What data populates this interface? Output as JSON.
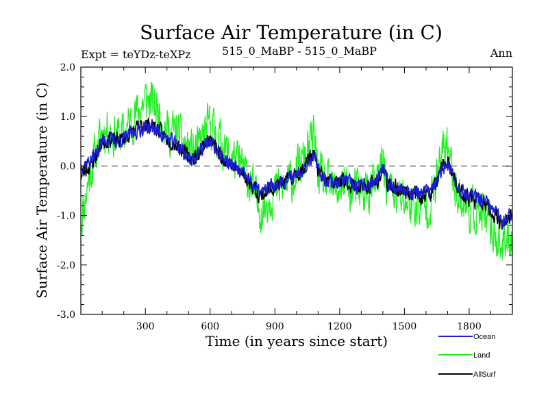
{
  "chart_data": {
    "type": "line",
    "title": "Surface Air Temperature (in C)",
    "subtitle_left": "Expt = teYDz-teXPz",
    "subtitle_center": "515_0_MaBP - 515_0_MaBP",
    "subtitle_right": "Ann",
    "xlabel": "Time (in years since start)",
    "ylabel": "Surface Air Temperature (in C)",
    "xlim": [
      1,
      2000
    ],
    "ylim": [
      -3.0,
      2.0
    ],
    "xticks": [
      300,
      600,
      900,
      1200,
      1500,
      1800
    ],
    "xtick_labels": [
      "300",
      "600",
      "900",
      "1200",
      "1500",
      "1800"
    ],
    "yticks": [
      -3.0,
      -2.0,
      -1.0,
      0.0,
      1.0,
      2.0
    ],
    "ytick_labels": [
      "-3.0",
      "-2.0",
      "-1.0",
      "0.0",
      "1.0",
      "2.0"
    ],
    "reference_line": {
      "y": 0.0,
      "style": "dashed",
      "color": "#808080"
    },
    "legend_placement": "below-right",
    "colors": {
      "Ocean": "#1c1cd8",
      "Land": "#22ee22",
      "AllSurf": "#000000"
    },
    "series_x": [
      1,
      20,
      40,
      60,
      80,
      100,
      130,
      160,
      200,
      240,
      280,
      300,
      320,
      340,
      360,
      400,
      440,
      470,
      500,
      540,
      580,
      600,
      620,
      640,
      680,
      720,
      760,
      800,
      820,
      840,
      880,
      920,
      960,
      1000,
      1040,
      1060,
      1080,
      1100,
      1140,
      1180,
      1220,
      1260,
      1300,
      1340,
      1380,
      1400,
      1420,
      1460,
      1500,
      1540,
      1580,
      1620,
      1660,
      1680,
      1700,
      1720,
      1760,
      1800,
      1840,
      1880,
      1920,
      1960,
      1990
    ],
    "series": [
      {
        "name": "Land",
        "variability": 0.45,
        "values": [
          -1.1,
          -0.7,
          -0.2,
          0.1,
          0.4,
          0.7,
          0.75,
          0.6,
          0.65,
          0.95,
          1.2,
          1.35,
          1.3,
          1.25,
          1.1,
          0.7,
          0.7,
          0.5,
          0.3,
          0.3,
          0.7,
          0.85,
          0.7,
          0.55,
          0.25,
          0.1,
          -0.1,
          -0.45,
          -0.8,
          -0.9,
          -0.6,
          -0.45,
          -0.35,
          -0.15,
          0.15,
          0.4,
          0.6,
          -0.1,
          -0.4,
          -0.5,
          -0.35,
          -0.5,
          -0.5,
          -0.5,
          -0.3,
          0.2,
          -0.4,
          -0.6,
          -0.7,
          -0.8,
          -0.85,
          -0.75,
          -0.1,
          0.35,
          0.45,
          -0.1,
          -0.7,
          -0.85,
          -0.95,
          -1.1,
          -1.4,
          -1.65,
          -1.4
        ]
      },
      {
        "name": "AllSurf",
        "variability": 0.16,
        "values": [
          -0.2,
          -0.1,
          0.0,
          0.1,
          0.3,
          0.5,
          0.55,
          0.5,
          0.55,
          0.7,
          0.8,
          0.85,
          0.82,
          0.8,
          0.75,
          0.55,
          0.45,
          0.35,
          0.15,
          0.2,
          0.5,
          0.55,
          0.4,
          0.25,
          0.1,
          -0.05,
          -0.2,
          -0.4,
          -0.55,
          -0.6,
          -0.45,
          -0.35,
          -0.3,
          -0.15,
          0.0,
          0.2,
          0.25,
          -0.1,
          -0.3,
          -0.35,
          -0.3,
          -0.4,
          -0.45,
          -0.4,
          -0.3,
          -0.05,
          -0.35,
          -0.45,
          -0.5,
          -0.55,
          -0.6,
          -0.55,
          -0.25,
          0.05,
          0.1,
          -0.2,
          -0.55,
          -0.65,
          -0.7,
          -0.8,
          -1.0,
          -1.15,
          -1.05
        ]
      },
      {
        "name": "Ocean",
        "variability": 0.15,
        "values": [
          0.0,
          0.05,
          0.1,
          0.2,
          0.3,
          0.5,
          0.55,
          0.5,
          0.55,
          0.65,
          0.75,
          0.8,
          0.78,
          0.75,
          0.7,
          0.55,
          0.45,
          0.35,
          0.15,
          0.2,
          0.45,
          0.5,
          0.38,
          0.25,
          0.1,
          -0.05,
          -0.2,
          -0.38,
          -0.5,
          -0.55,
          -0.42,
          -0.33,
          -0.28,
          -0.15,
          0.0,
          0.15,
          0.2,
          -0.1,
          -0.28,
          -0.33,
          -0.28,
          -0.38,
          -0.42,
          -0.38,
          -0.28,
          -0.05,
          -0.33,
          -0.42,
          -0.48,
          -0.52,
          -0.55,
          -0.5,
          -0.25,
          0.0,
          0.05,
          -0.2,
          -0.5,
          -0.6,
          -0.65,
          -0.75,
          -0.95,
          -1.1,
          -1.0
        ]
      }
    ],
    "legend": [
      {
        "name": "Ocean",
        "label": "Ocean"
      },
      {
        "name": "Land",
        "label": "Land"
      },
      {
        "name": "AllSurf",
        "label": "AllSurf"
      }
    ]
  }
}
